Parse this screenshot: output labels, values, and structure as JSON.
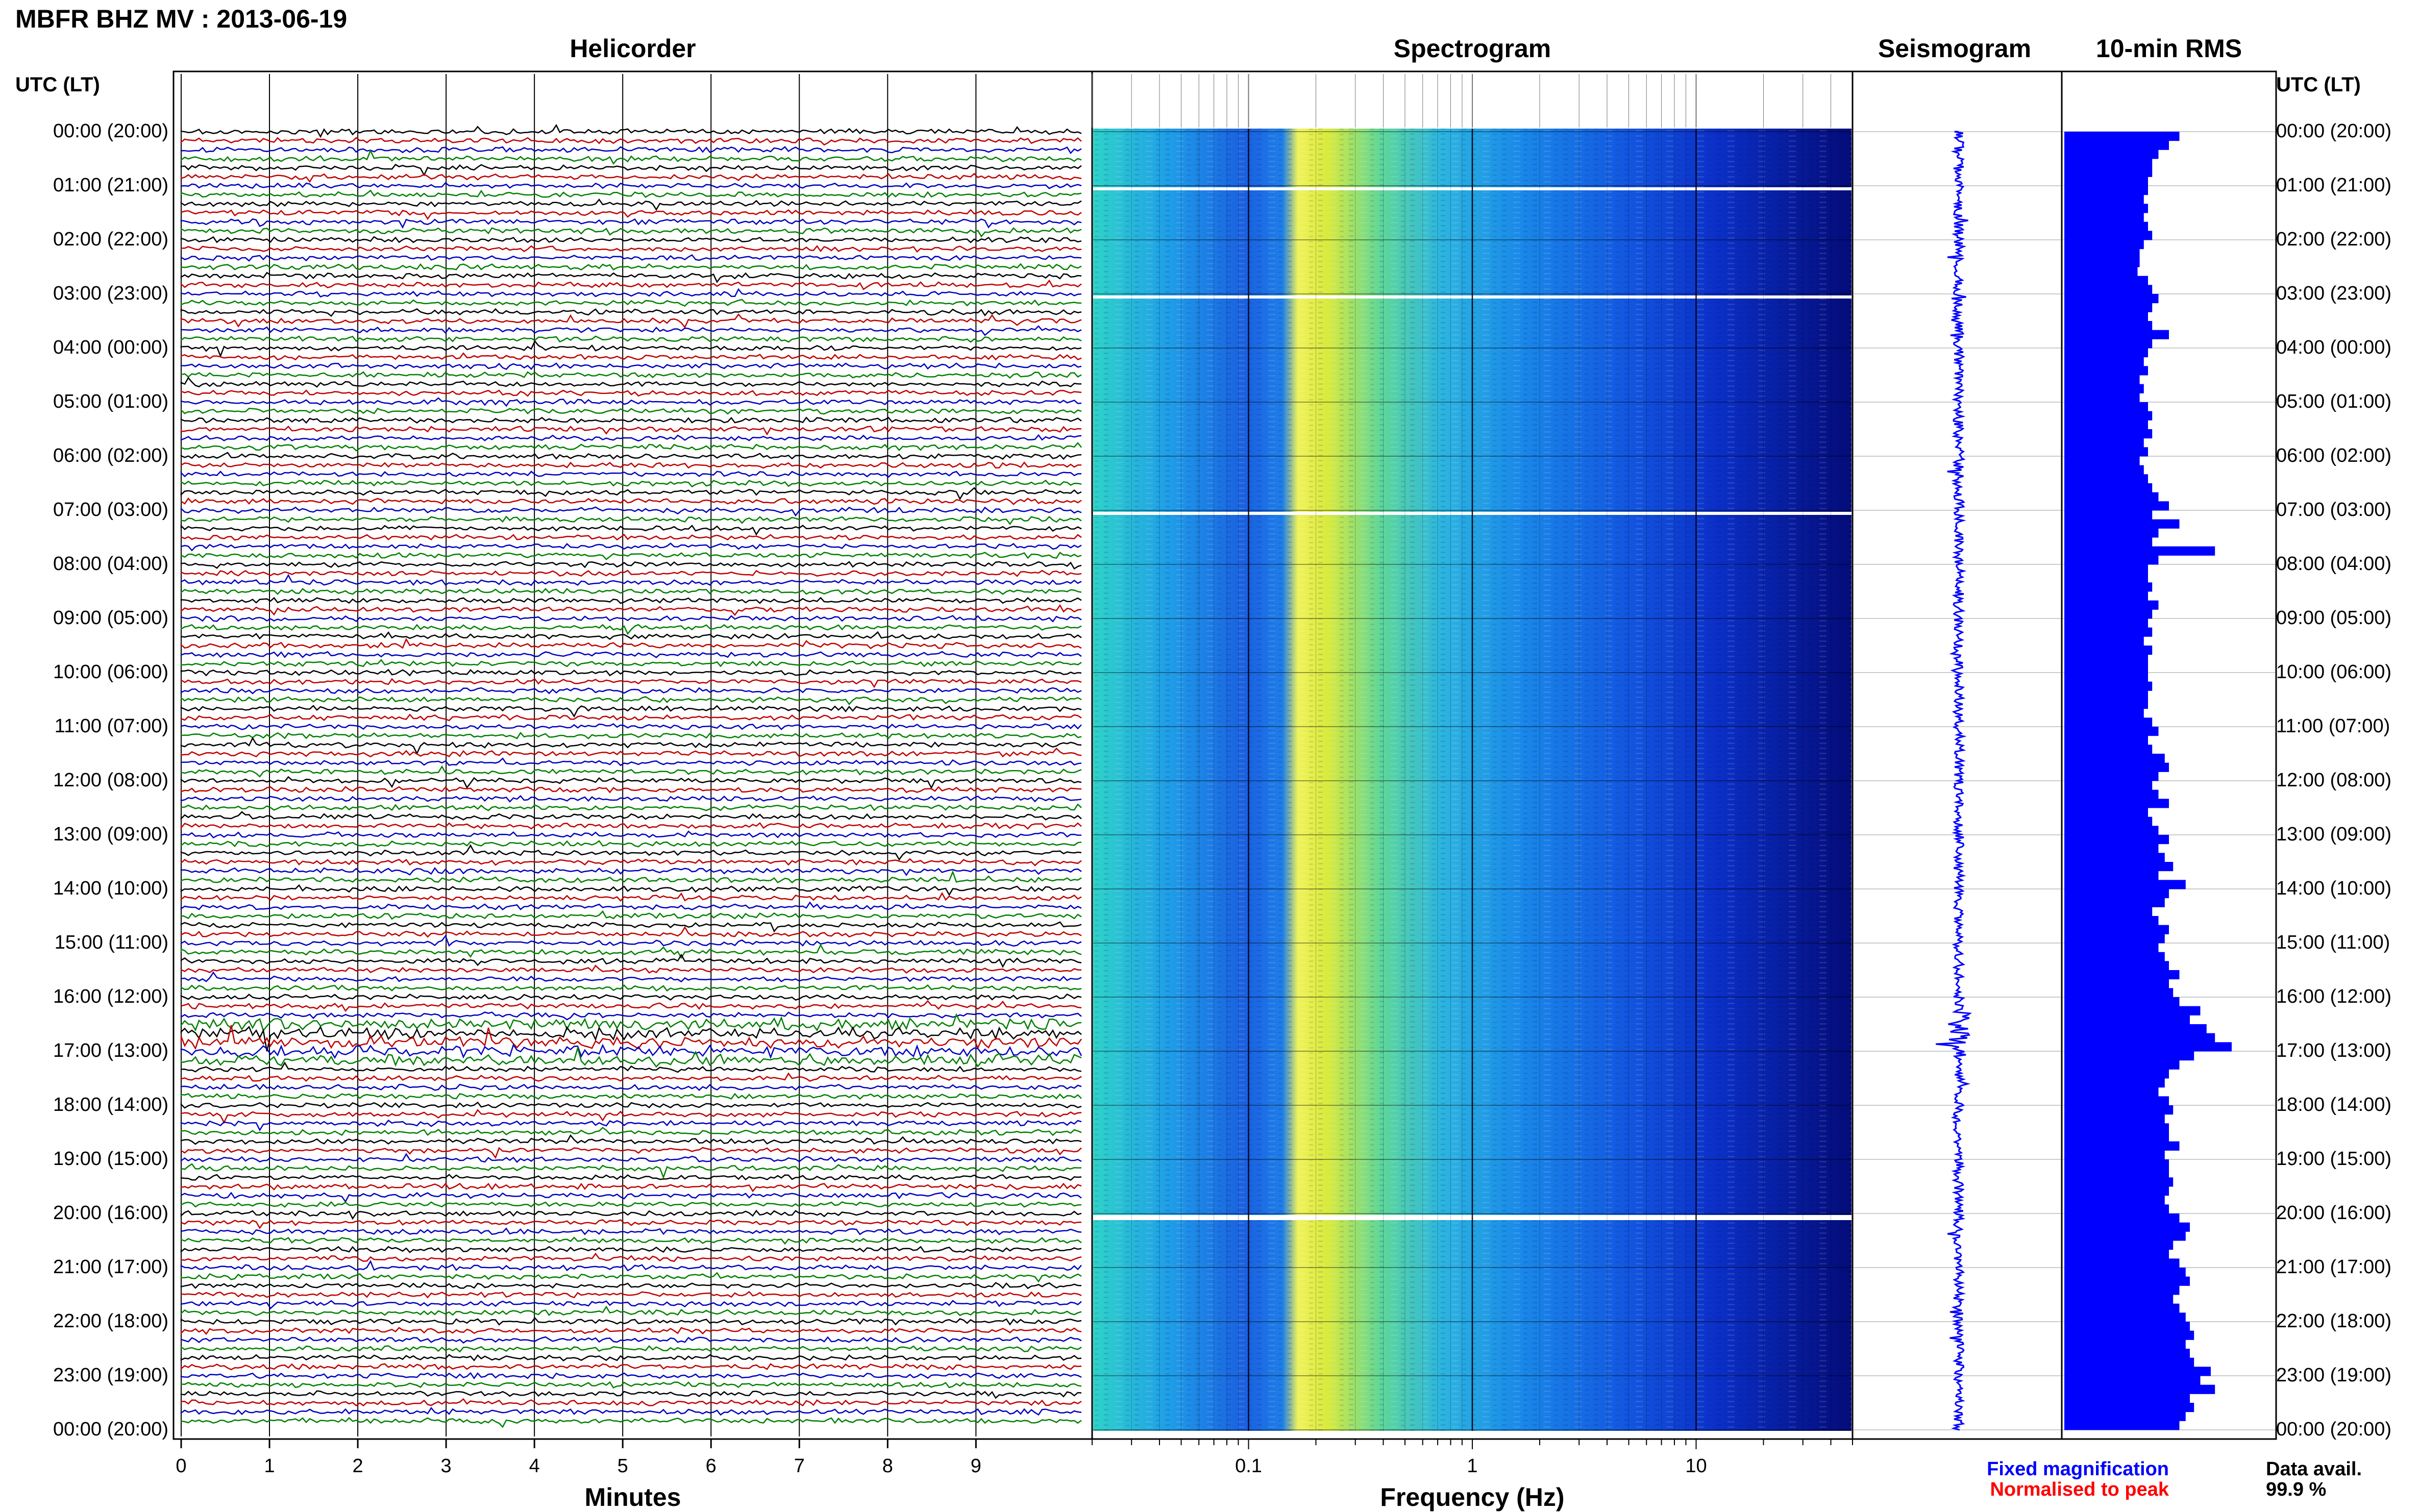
{
  "header": {
    "station_title": "MBFR BHZ MV : 2013-06-19",
    "utc_label": "UTC (LT)"
  },
  "panels": {
    "helicorder": "Helicorder",
    "spectrogram": "Spectrogram",
    "seismogram": "Seismogram",
    "rms": "10-min RMS"
  },
  "axes": {
    "minutes_label": "Minutes",
    "frequency_label": "Frequency (Hz)",
    "minutes_ticks": [
      "0",
      "1",
      "2",
      "3",
      "4",
      "5",
      "6",
      "7",
      "8",
      "9"
    ],
    "frequency_ticks": [
      "0.1",
      "1",
      "10"
    ]
  },
  "legend": {
    "fixed": "Fixed magnification",
    "normalised": "Normalised to peak",
    "data_avail_label": "Data avail.",
    "data_avail_value": "99.9 %"
  },
  "colors": {
    "trace_cycle": [
      "#000000",
      "#c00000",
      "#0000c0",
      "#008000"
    ],
    "fixed_legend": "#0000ff",
    "normalised_legend": "#ff0000",
    "rms_bar": "#0000ff"
  },
  "hour_labels": [
    "00:00 (20:00)",
    "01:00 (21:00)",
    "02:00 (22:00)",
    "03:00 (23:00)",
    "04:00 (00:00)",
    "05:00 (01:00)",
    "06:00 (02:00)",
    "07:00 (03:00)",
    "08:00 (04:00)",
    "09:00 (05:00)",
    "10:00 (06:00)",
    "11:00 (07:00)",
    "12:00 (08:00)",
    "13:00 (09:00)",
    "14:00 (10:00)",
    "15:00 (11:00)",
    "16:00 (12:00)",
    "17:00 (13:00)",
    "18:00 (14:00)",
    "19:00 (15:00)",
    "20:00 (16:00)",
    "21:00 (17:00)",
    "22:00 (18:00)",
    "23:00 (19:00)",
    "00:00 (20:00)"
  ],
  "chart_data": {
    "type": "heatmap",
    "title": "MBFR BHZ MV : 2013-06-19",
    "helicorder": {
      "minutes_range": [
        0,
        10
      ],
      "lines_per_hour": 6,
      "hours": 24
    },
    "spectrogram": {
      "frequency_range_hz": [
        0.02,
        50
      ],
      "scale": "log",
      "hours": 24
    },
    "rms_10min": {
      "bar_color": "#0000ff",
      "values": [
        0.55,
        0.5,
        0.45,
        0.42,
        0.42,
        0.4,
        0.4,
        0.38,
        0.4,
        0.38,
        0.4,
        0.42,
        0.38,
        0.36,
        0.36,
        0.35,
        0.4,
        0.42,
        0.45,
        0.42,
        0.4,
        0.42,
        0.5,
        0.42,
        0.4,
        0.38,
        0.4,
        0.36,
        0.38,
        0.36,
        0.4,
        0.42,
        0.4,
        0.42,
        0.38,
        0.4,
        0.36,
        0.38,
        0.4,
        0.42,
        0.45,
        0.5,
        0.42,
        0.55,
        0.45,
        0.42,
        0.72,
        0.45,
        0.4,
        0.4,
        0.42,
        0.4,
        0.45,
        0.42,
        0.4,
        0.42,
        0.38,
        0.42,
        0.4,
        0.4,
        0.4,
        0.42,
        0.4,
        0.4,
        0.38,
        0.42,
        0.45,
        0.4,
        0.42,
        0.48,
        0.5,
        0.45,
        0.42,
        0.45,
        0.5,
        0.4,
        0.42,
        0.45,
        0.5,
        0.45,
        0.48,
        0.52,
        0.45,
        0.58,
        0.5,
        0.48,
        0.42,
        0.45,
        0.5,
        0.48,
        0.45,
        0.48,
        0.5,
        0.55,
        0.5,
        0.52,
        0.55,
        0.65,
        0.6,
        0.68,
        0.72,
        0.8,
        0.62,
        0.55,
        0.5,
        0.48,
        0.45,
        0.5,
        0.52,
        0.48,
        0.5,
        0.5,
        0.55,
        0.48,
        0.5,
        0.5,
        0.52,
        0.5,
        0.48,
        0.5,
        0.55,
        0.6,
        0.58,
        0.52,
        0.5,
        0.55,
        0.58,
        0.6,
        0.55,
        0.52,
        0.55,
        0.58,
        0.6,
        0.62,
        0.58,
        0.6,
        0.62,
        0.7,
        0.65,
        0.72,
        0.6,
        0.62,
        0.58,
        0.55
      ]
    }
  }
}
